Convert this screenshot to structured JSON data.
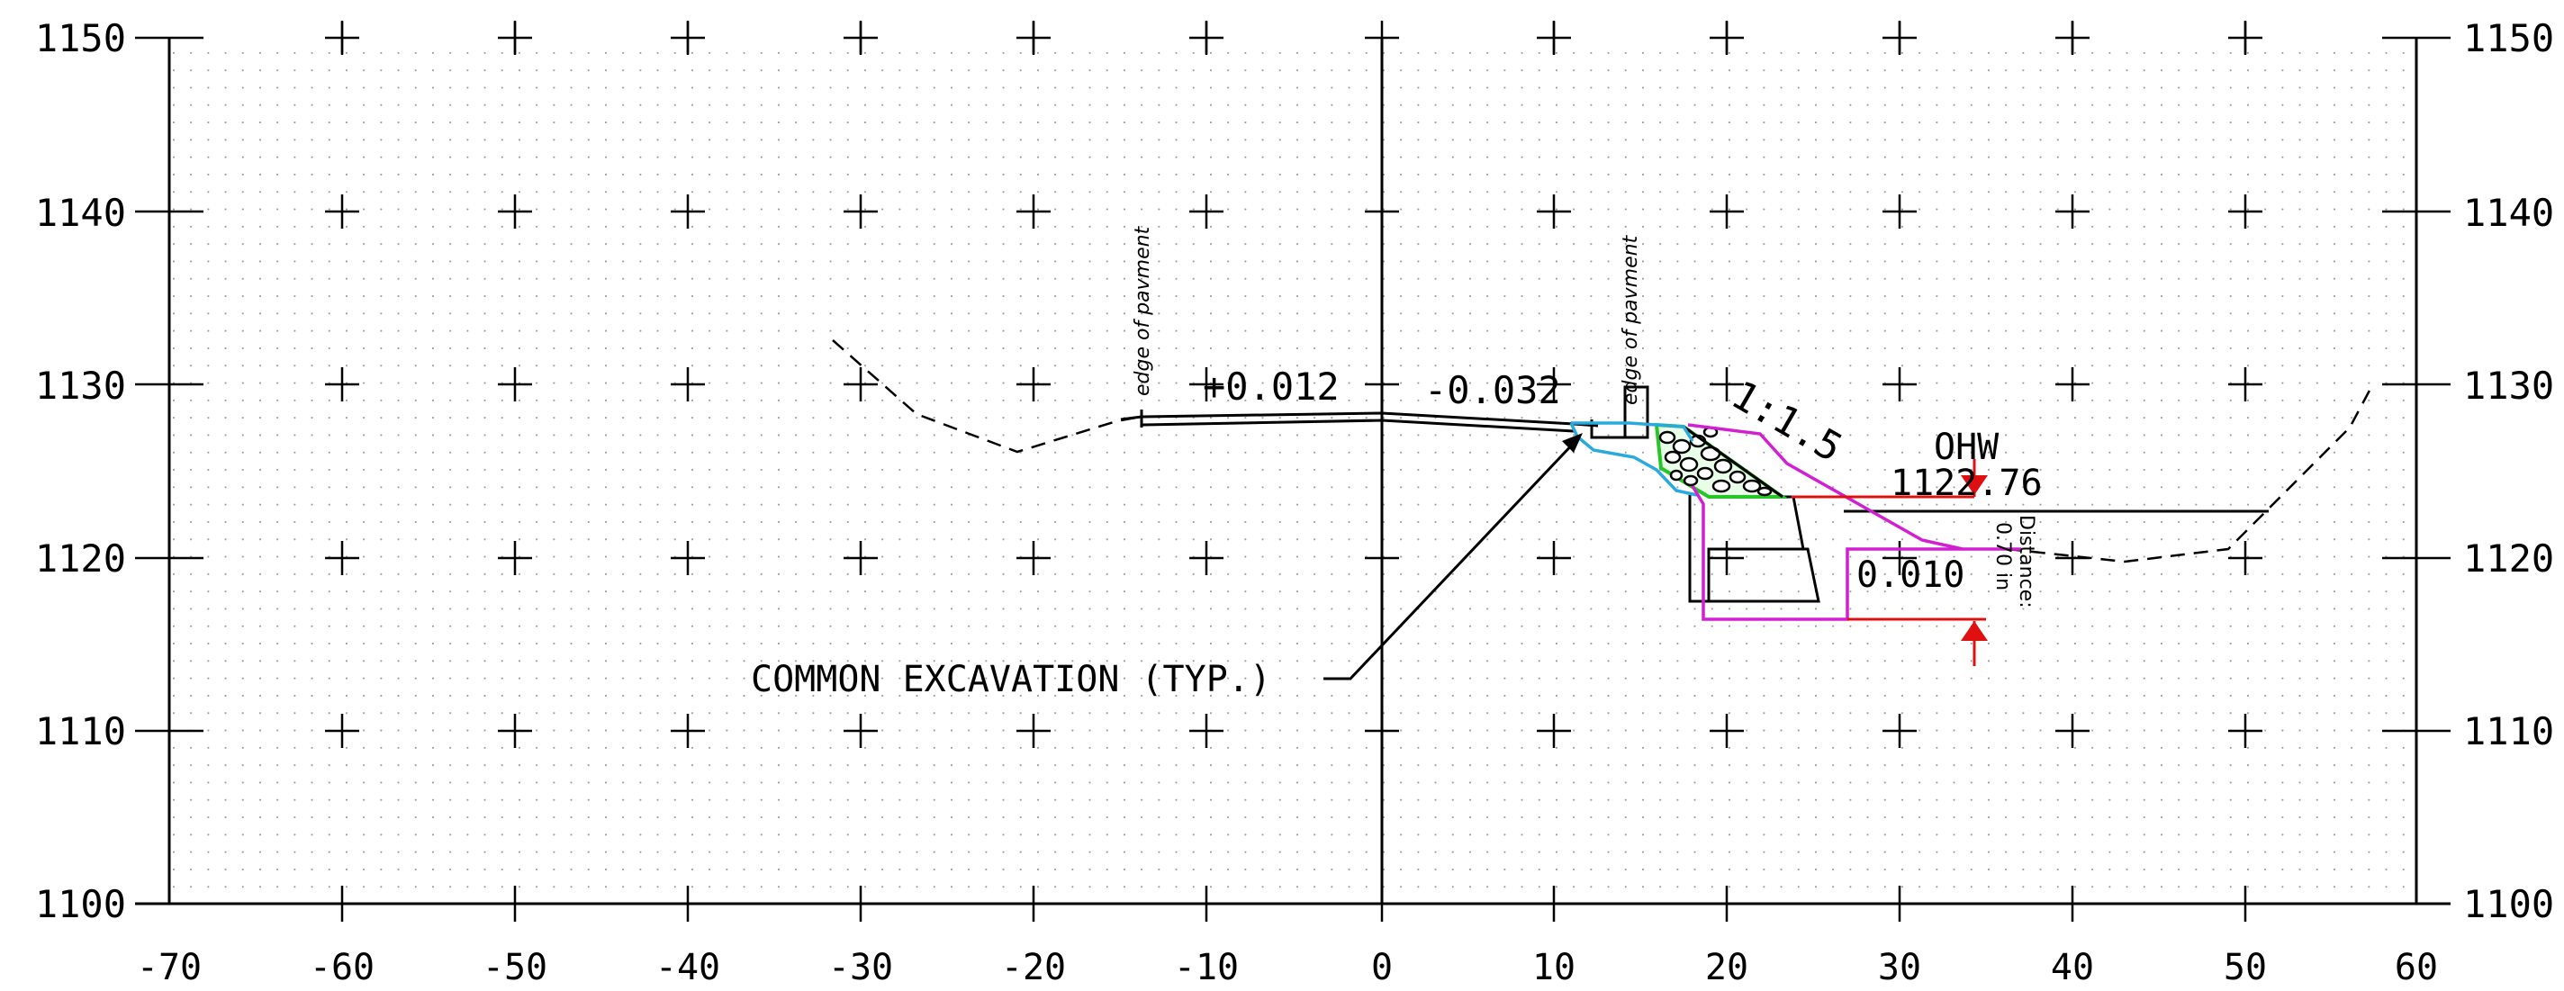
{
  "x_ticks": [
    "-70",
    "-60",
    "-50",
    "-40",
    "-30",
    "-20",
    "-10",
    "0",
    "10",
    "20",
    "30",
    "40",
    "50",
    "60"
  ],
  "y_ticks": [
    "1100",
    "1110",
    "1120",
    "1130",
    "1140",
    "1150"
  ],
  "labels": {
    "edge_left": "edge of pavment",
    "edge_right": "edge of pavment",
    "slope_left": "+0.012",
    "slope_right": "-0.032",
    "side_slope": "1:1.5",
    "ohw": "OHW",
    "ohw_elev": "1122.76",
    "bench_slope": "0.010",
    "distance": "Distance:",
    "distance_value": "0.70 in",
    "callout": "COMMON EXCAVATION (TYP.)"
  },
  "colors": {
    "line": "#000000",
    "grid_dot": "#9a9a9a",
    "cyan": "#29a9e0",
    "magenta": "#d21fd2",
    "green": "#26c626",
    "red": "#e01010"
  }
}
